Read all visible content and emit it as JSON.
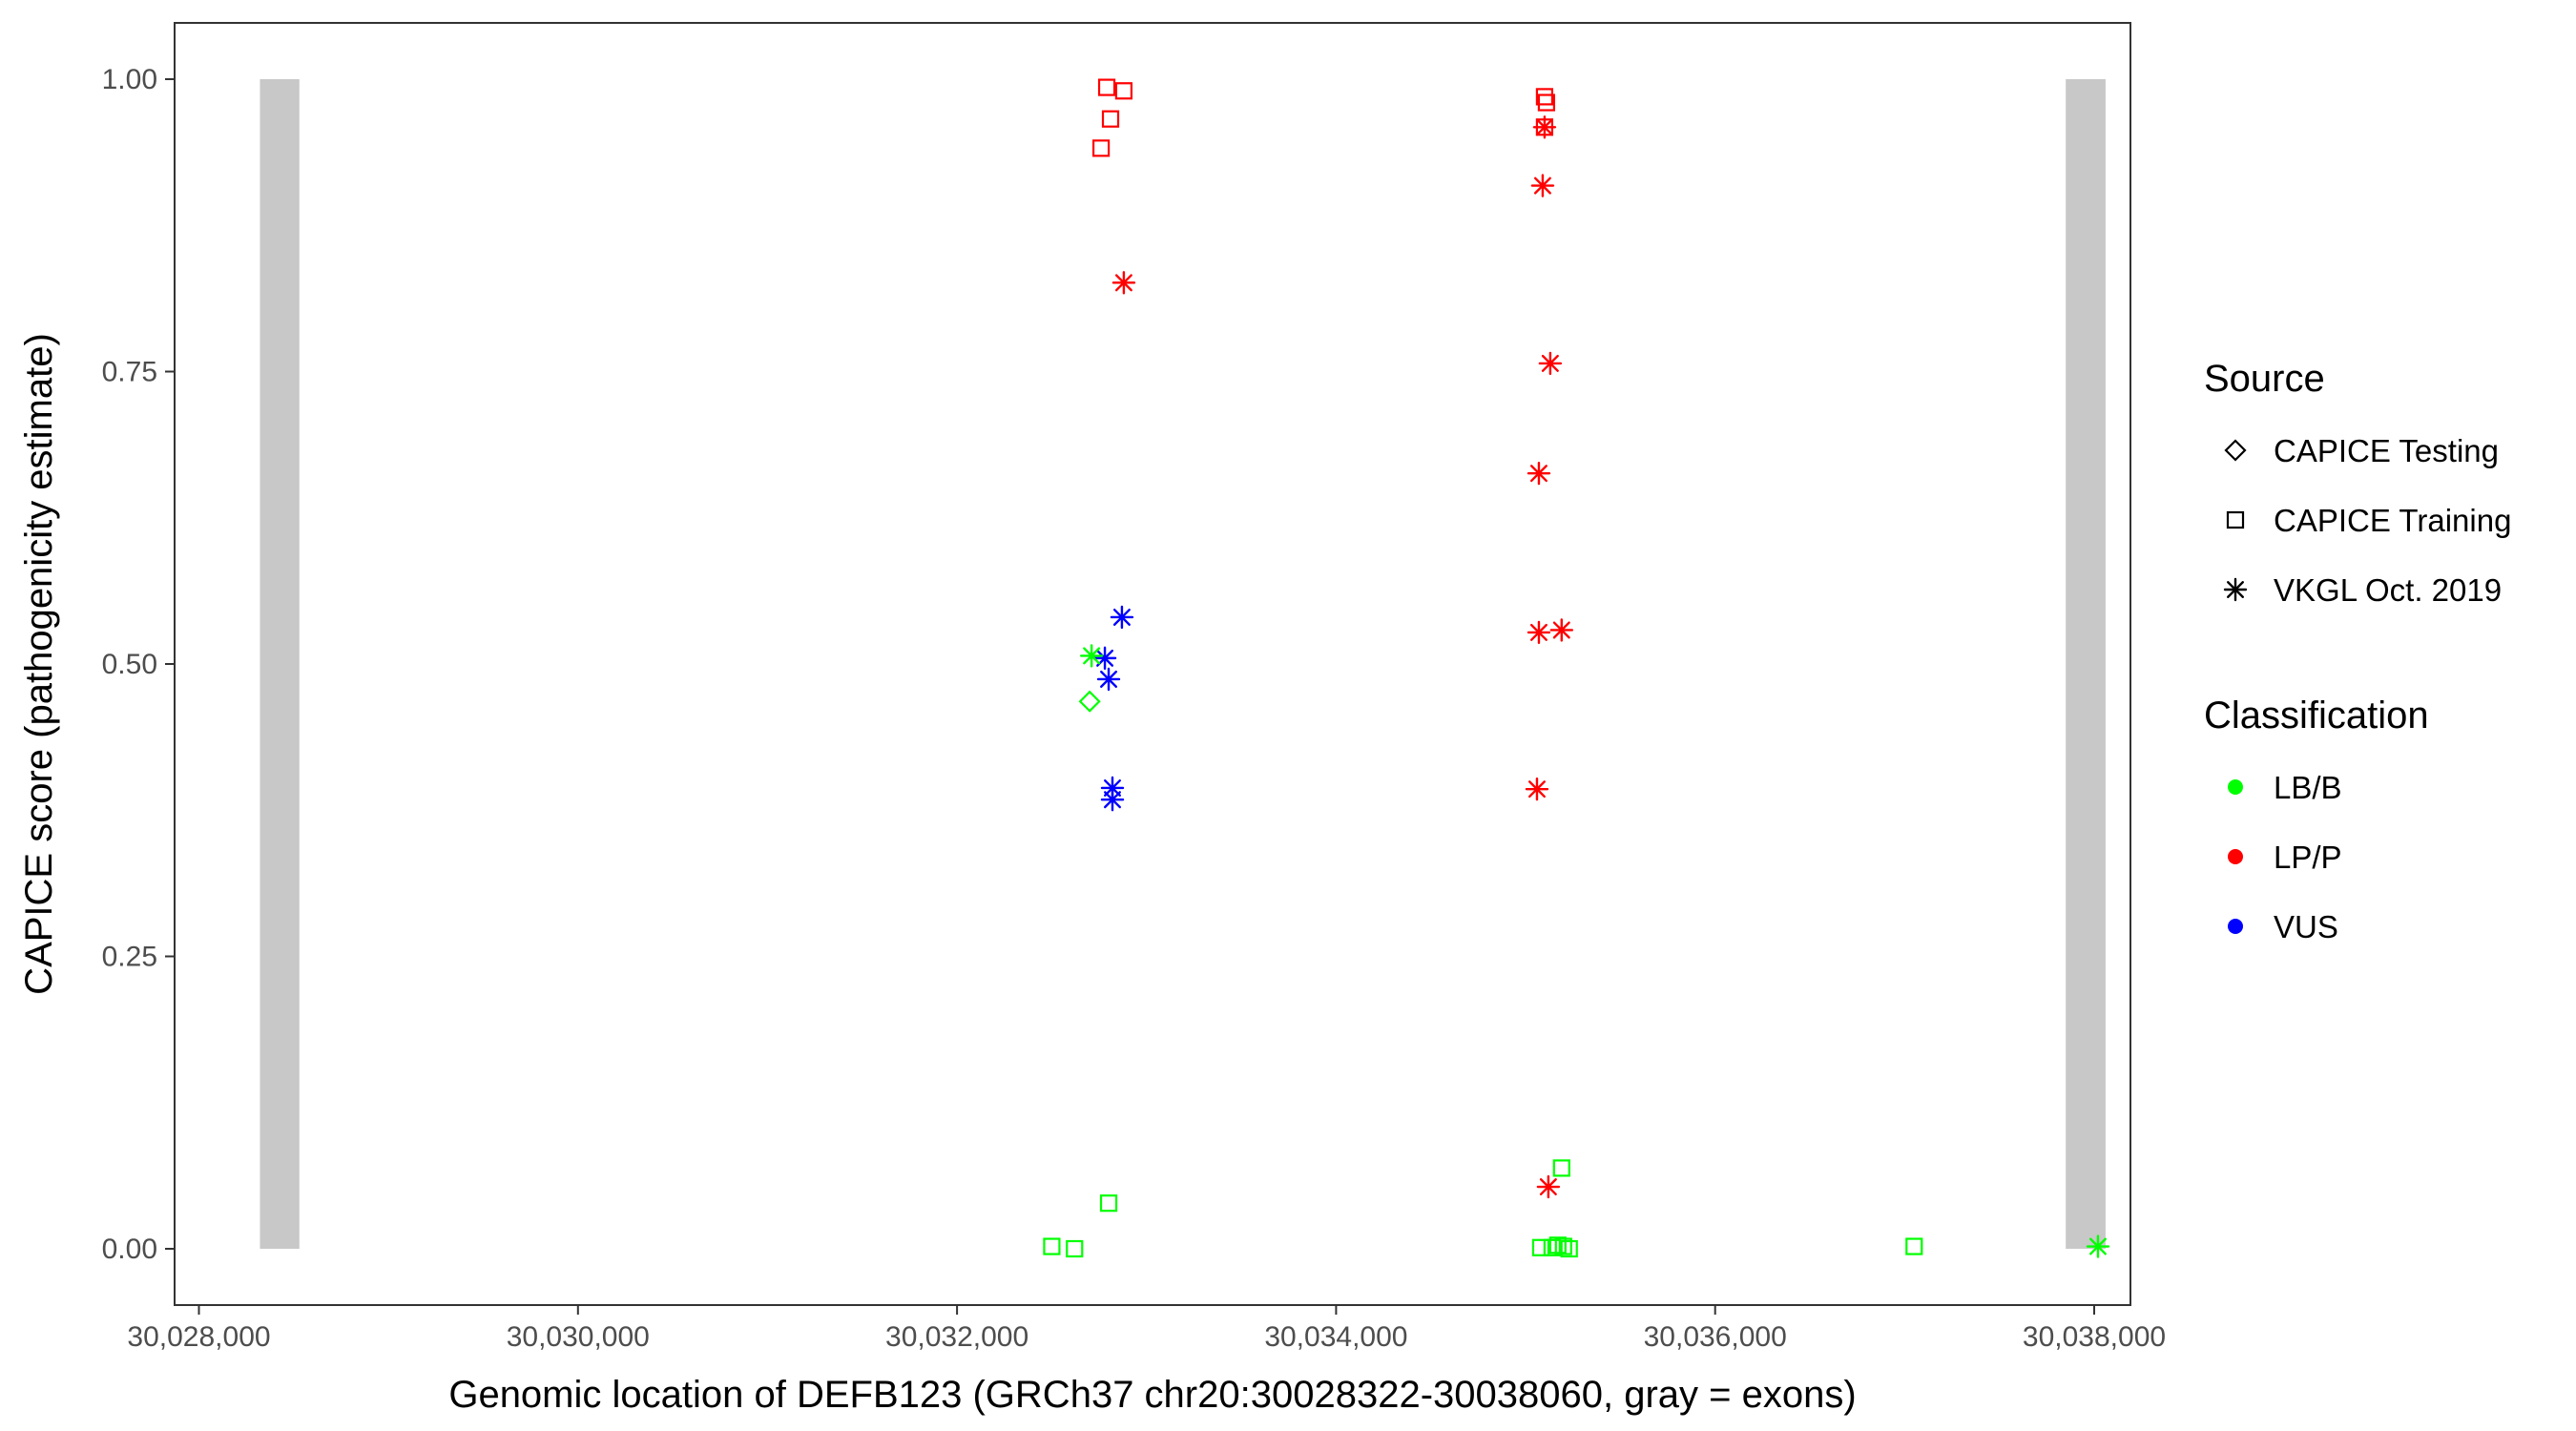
{
  "chart_data": {
    "type": "scatter",
    "xlabel": "Genomic location of DEFB123 (GRCh37 chr20:30028322-30038060, gray = exons)",
    "ylabel": "CAPICE score (pathogenicity estimate)",
    "xlim": [
      28000,
      38000
    ],
    "ylim": [
      0,
      1
    ],
    "x_ticks": [
      28000,
      30000,
      32000,
      34000,
      36000,
      38000
    ],
    "x_tick_labels": [
      "30,028,000",
      "30,030,000",
      "30,032,000",
      "30,034,000",
      "30,036,000",
      "30,038,000"
    ],
    "y_ticks": [
      0,
      0.25,
      0.5,
      0.75,
      1.0
    ],
    "y_tick_labels": [
      "0.00",
      "0.25",
      "0.50",
      "0.75",
      "1.00"
    ],
    "grid": false,
    "legend_position": "right",
    "exons": [
      [
        28322,
        28530
      ],
      [
        37850,
        38060
      ]
    ],
    "exon_color": "#c8c8c8",
    "legends": [
      {
        "title": "Source",
        "items": [
          {
            "label": "CAPICE Testing",
            "shape": "diamond"
          },
          {
            "label": "CAPICE Training",
            "shape": "square"
          },
          {
            "label": "VKGL Oct. 2019",
            "shape": "asterisk"
          }
        ]
      },
      {
        "title": "Classification",
        "items": [
          {
            "label": "LB/B",
            "color": "#00ff00"
          },
          {
            "label": "LP/P",
            "color": "#ff0000"
          },
          {
            "label": "VUS",
            "color": "#0000ff"
          }
        ]
      }
    ],
    "points": [
      {
        "x": 32790,
        "y": 0.993,
        "shape": "square",
        "class": "LP/P"
      },
      {
        "x": 32880,
        "y": 0.99,
        "shape": "square",
        "class": "LP/P"
      },
      {
        "x": 32810,
        "y": 0.966,
        "shape": "square",
        "class": "LP/P"
      },
      {
        "x": 32760,
        "y": 0.941,
        "shape": "square",
        "class": "LP/P"
      },
      {
        "x": 32880,
        "y": 0.826,
        "shape": "asterisk",
        "class": "LP/P"
      },
      {
        "x": 35100,
        "y": 0.985,
        "shape": "square",
        "class": "LP/P"
      },
      {
        "x": 35110,
        "y": 0.98,
        "shape": "square",
        "class": "LP/P"
      },
      {
        "x": 35100,
        "y": 0.959,
        "shape": "square",
        "class": "LP/P"
      },
      {
        "x": 35100,
        "y": 0.959,
        "shape": "asterisk",
        "class": "LP/P"
      },
      {
        "x": 35090,
        "y": 0.909,
        "shape": "asterisk",
        "class": "LP/P"
      },
      {
        "x": 35130,
        "y": 0.757,
        "shape": "asterisk",
        "class": "LP/P"
      },
      {
        "x": 35070,
        "y": 0.663,
        "shape": "asterisk",
        "class": "LP/P"
      },
      {
        "x": 35070,
        "y": 0.527,
        "shape": "asterisk",
        "class": "LP/P"
      },
      {
        "x": 35190,
        "y": 0.529,
        "shape": "asterisk",
        "class": "LP/P"
      },
      {
        "x": 35060,
        "y": 0.393,
        "shape": "asterisk",
        "class": "LP/P"
      },
      {
        "x": 35120,
        "y": 0.053,
        "shape": "asterisk",
        "class": "LP/P"
      },
      {
        "x": 32870,
        "y": 0.54,
        "shape": "asterisk",
        "class": "VUS"
      },
      {
        "x": 32780,
        "y": 0.505,
        "shape": "asterisk",
        "class": "VUS"
      },
      {
        "x": 32800,
        "y": 0.487,
        "shape": "asterisk",
        "class": "VUS"
      },
      {
        "x": 32820,
        "y": 0.394,
        "shape": "asterisk",
        "class": "VUS"
      },
      {
        "x": 32820,
        "y": 0.384,
        "shape": "asterisk",
        "class": "VUS"
      },
      {
        "x": 32710,
        "y": 0.507,
        "shape": "asterisk",
        "class": "LB/B"
      },
      {
        "x": 32700,
        "y": 0.468,
        "shape": "diamond",
        "class": "LB/B"
      },
      {
        "x": 32800,
        "y": 0.039,
        "shape": "square",
        "class": "LB/B"
      },
      {
        "x": 32500,
        "y": 0.002,
        "shape": "square",
        "class": "LB/B"
      },
      {
        "x": 32620,
        "y": 0.0,
        "shape": "square",
        "class": "LB/B"
      },
      {
        "x": 35190,
        "y": 0.069,
        "shape": "square",
        "class": "LB/B"
      },
      {
        "x": 35080,
        "y": 0.001,
        "shape": "square",
        "class": "LB/B"
      },
      {
        "x": 35140,
        "y": 0.001,
        "shape": "square",
        "class": "LB/B"
      },
      {
        "x": 35170,
        "y": 0.003,
        "shape": "square",
        "class": "LB/B"
      },
      {
        "x": 35200,
        "y": 0.002,
        "shape": "square",
        "class": "LB/B"
      },
      {
        "x": 35230,
        "y": 0.0,
        "shape": "square",
        "class": "LB/B"
      },
      {
        "x": 37050,
        "y": 0.002,
        "shape": "square",
        "class": "LB/B"
      },
      {
        "x": 38020,
        "y": 0.002,
        "shape": "asterisk",
        "class": "LB/B"
      }
    ]
  }
}
